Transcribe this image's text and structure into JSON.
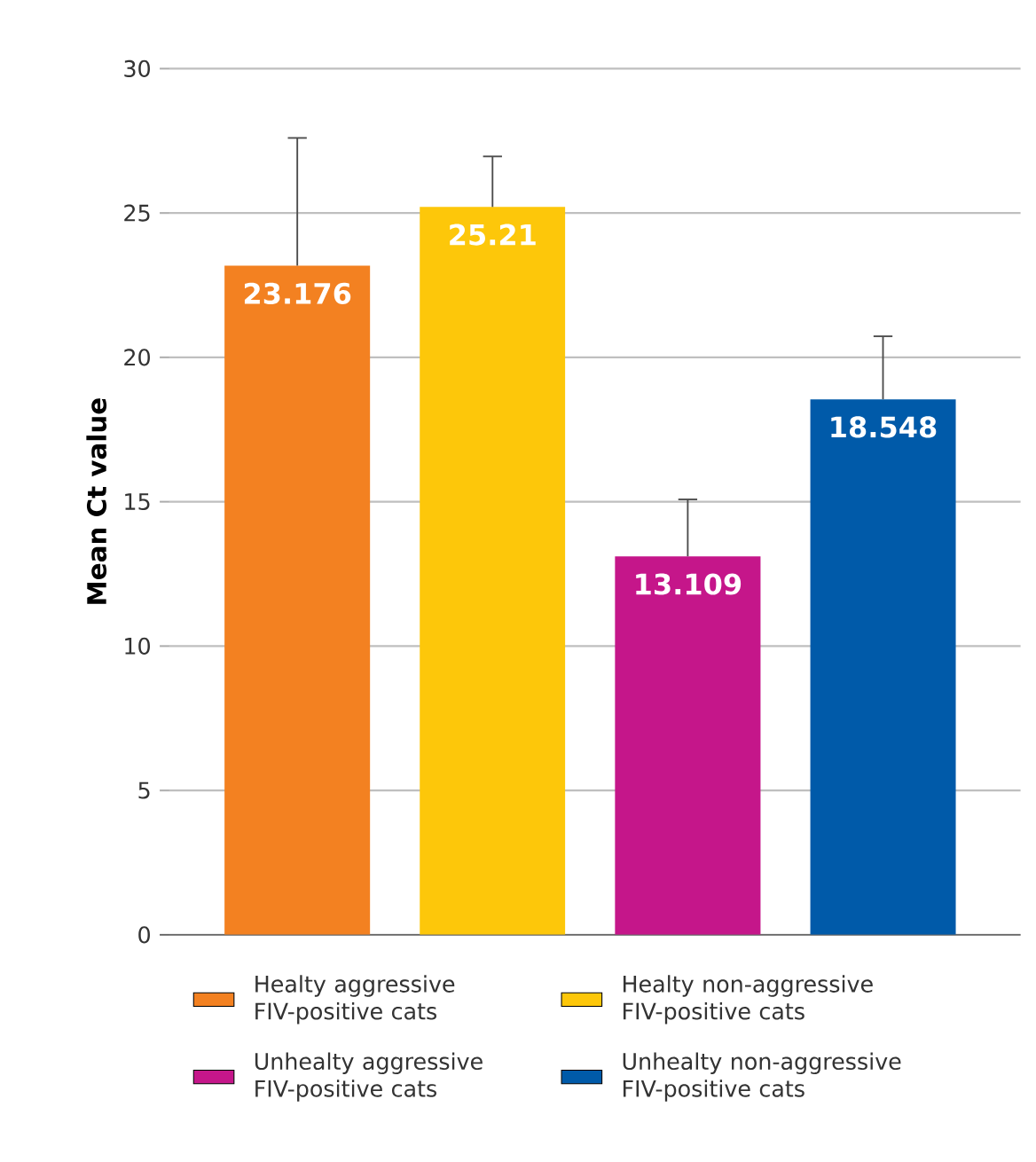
{
  "chart_data": {
    "type": "bar",
    "ylabel": "Mean Ct value",
    "categories": [
      null
    ],
    "series": [
      {
        "name": "Healty aggressive FIV-positive cats",
        "color": "#f38121",
        "values": [
          23.176
        ],
        "errors": [
          [
            23.176,
            27.6
          ]
        ]
      },
      {
        "name": "Healty non-aggressive FIV-positive cats",
        "color": "#fdc70a",
        "values": [
          25.21
        ],
        "errors": [
          [
            25.21,
            26.96
          ]
        ]
      },
      {
        "name": "Unhealty aggressive FIV-positive cats",
        "color": "#c5168a",
        "values": [
          13.109
        ],
        "errors": [
          [
            13.109,
            15.08
          ]
        ]
      },
      {
        "name": "Unhealty non-aggressive FIV-positive cats",
        "color": "#005aa9",
        "values": [
          18.548
        ],
        "errors": [
          [
            18.548,
            20.73
          ]
        ]
      }
    ],
    "data_labels": true,
    "ylim": [
      0,
      30
    ],
    "yticks": [
      0,
      5,
      10,
      15,
      20,
      25,
      30
    ],
    "grid": "y",
    "legend": "bottom",
    "tick_labels": "y"
  }
}
